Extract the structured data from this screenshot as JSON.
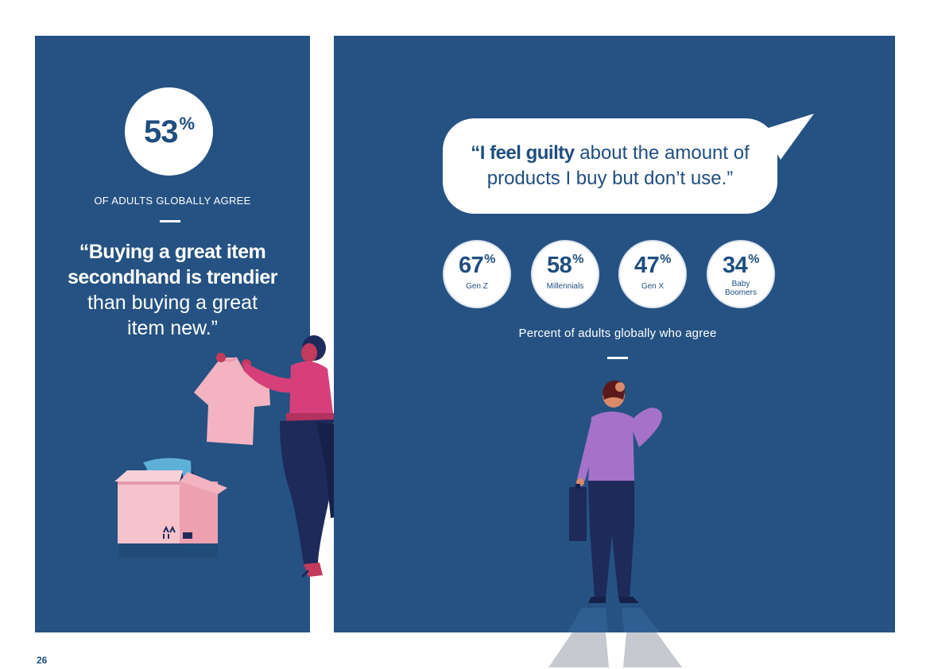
{
  "left": {
    "stat_value": "53",
    "stat_unit": "%",
    "stat_label": "OF ADULTS GLOBALLY AGREE",
    "quote_bold_1": "“Buying a great item",
    "quote_bold_2": "secondhand is trendier",
    "quote_reg_1": "than buying a great",
    "quote_reg_2": "item new.”"
  },
  "right": {
    "quote_bold": "“I feel guilty",
    "quote_rest_1": "about the amount of",
    "quote_rest_2": "products I buy but don’t use.”",
    "stats": [
      {
        "value": "67",
        "unit": "%",
        "label": "Gen Z"
      },
      {
        "value": "58",
        "unit": "%",
        "label": "Millennials"
      },
      {
        "value": "47",
        "unit": "%",
        "label": "Gen X"
      },
      {
        "value": "34",
        "unit": "%",
        "label": "Baby Boomers"
      }
    ],
    "caption": "Percent of adults globally who agree"
  },
  "page_number": "26",
  "colors": {
    "panel": "#255282",
    "text_blue": "#1f4e80",
    "shirt_pink": "#f3b3c0",
    "box_pink": "#f0a8b8",
    "woman_top": "#d63f7a",
    "pants_navy": "#1d2a5a",
    "man_shirt": "#a672c9"
  },
  "illustrations": [
    "woman-holding-shirt-illustration",
    "clothing-box-illustration",
    "thinking-man-illustration"
  ]
}
